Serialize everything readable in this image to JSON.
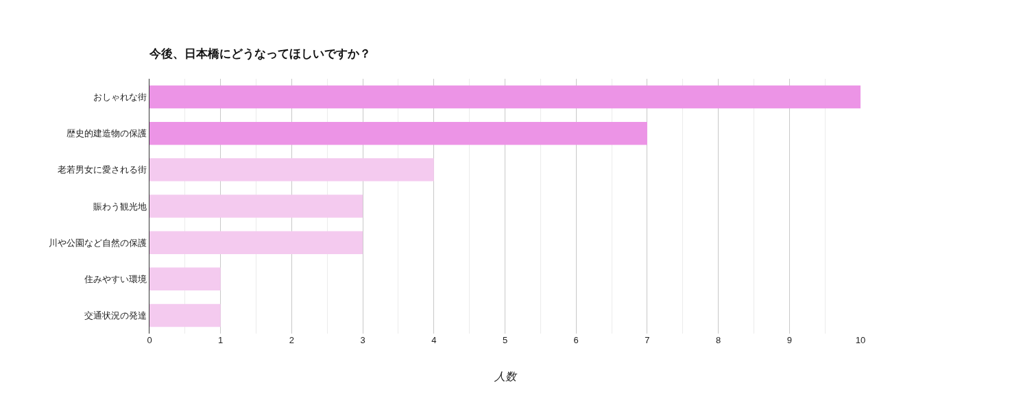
{
  "chart_data": {
    "type": "bar",
    "orientation": "horizontal",
    "title": "今後、日本橋にどうなってほしいですか？",
    "xlabel": "人数",
    "categories": [
      "おしゃれな街",
      "歴史的建造物の保護",
      "老若男女に愛される街",
      "賑わう観光地",
      "川や公園など自然の保護",
      "住みやすい環境",
      "交通状況の発達"
    ],
    "values": [
      10,
      7,
      4,
      3,
      3,
      1,
      1
    ],
    "colors": [
      "#ec94e6",
      "#ec94e6",
      "#f4caef",
      "#f4caef",
      "#f4caef",
      "#f4caef",
      "#f4caef"
    ],
    "xlim": [
      0,
      10
    ],
    "xticks": [
      0,
      1,
      2,
      3,
      4,
      5,
      6,
      7,
      8,
      9,
      10
    ],
    "grid": "x"
  }
}
